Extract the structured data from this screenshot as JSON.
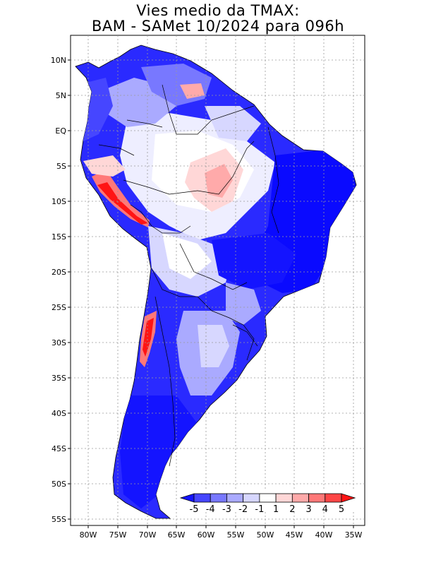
{
  "title_line1": "Vies medio da TMAX:",
  "title_line2": "BAM - SAMet 10/2024  para 096h",
  "lat_labels": [
    "10N",
    "5N",
    "EQ",
    "5S",
    "10S",
    "15S",
    "20S",
    "25S",
    "30S",
    "35S",
    "40S",
    "45S",
    "50S",
    "55S"
  ],
  "lon_labels": [
    "80W",
    "75W",
    "70W",
    "65W",
    "60W",
    "55W",
    "50W",
    "45W",
    "40W",
    "35W"
  ],
  "colorbar": {
    "labels": [
      "-5",
      "-4",
      "-3",
      "-2",
      "-1",
      "1",
      "2",
      "3",
      "4",
      "5"
    ],
    "colors": [
      "#1414ff",
      "#4646ff",
      "#7878ff",
      "#aaaaff",
      "#d7d7ff",
      "#ffffff",
      "#ffd7d7",
      "#ffaaaa",
      "#ff7878",
      "#ff4646",
      "#ff1414"
    ]
  },
  "colors": {
    "land_base": "#2a2aff",
    "grid": "#9a9a9a",
    "border": "#000000"
  }
}
